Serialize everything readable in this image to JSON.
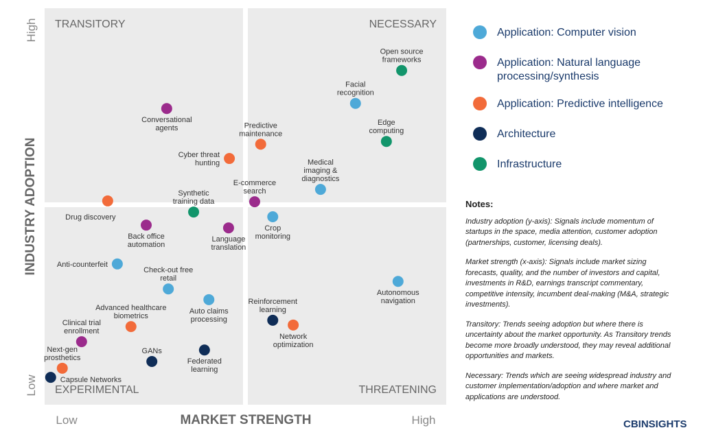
{
  "chart_data": {
    "type": "scatter",
    "x_label": "MARKET STRENGTH",
    "y_label": "INDUSTRY ADOPTION",
    "xlim": [
      0,
      100
    ],
    "ylim": [
      0,
      100
    ],
    "xticks": [
      {
        "value": 0,
        "label": "Low"
      },
      {
        "value": 100,
        "label": "High"
      }
    ],
    "yticks": [
      {
        "value": 0,
        "label": "Low"
      },
      {
        "value": 100,
        "label": "High"
      }
    ],
    "quadrants": {
      "top_left": "TRANSITORY",
      "top_right": "NECESSARY",
      "bottom_left": "EXPERIMENTAL",
      "bottom_right": "THREATENING"
    },
    "series": [
      {
        "name": "Application: Computer vision",
        "color": "#4ea9d8",
        "labels": [
          "Facial\nrecognition",
          "Medical\nimaging &\ndiagnostics",
          "Crop\nmonitoring",
          "Anti-counterfeit",
          "Check-out free\nretail",
          "Autonomous\nnavigation",
          "Auto claims\nprocessing"
        ],
        "x": [
          77.4,
          68.7,
          56.8,
          18.1,
          30.8,
          88.0,
          40.9
        ],
        "y": [
          76.0,
          54.3,
          47.4,
          35.5,
          29.2,
          31.1,
          26.5
        ]
      },
      {
        "name": "Application: Natural language\nprocessing/synthesis",
        "color": "#9b2b8c",
        "labels": [
          "Conversational\nagents",
          "E-commerce\nsearch",
          "Back office\nautomation",
          "Language\ntranslation",
          "Clinical trial\nenrollment"
        ],
        "x": [
          30.4,
          52.3,
          25.3,
          45.8,
          9.2
        ],
        "y": [
          74.7,
          51.2,
          45.3,
          44.6,
          15.9
        ]
      },
      {
        "name": "Application: Predictive intelligence",
        "color": "#f26b3a",
        "labels": [
          "Predictive\nmaintenance",
          "Cyber threat\nhunting",
          "Drug discovery",
          "Advanced healthcare\nbiometrics",
          "Network\noptimization",
          "Next-gen\nprosthetics"
        ],
        "x": [
          53.8,
          46.0,
          15.7,
          21.5,
          61.9,
          4.4
        ],
        "y": [
          65.7,
          62.1,
          51.4,
          19.7,
          20.1,
          9.2
        ]
      },
      {
        "name": "Architecture",
        "color": "#0f2d57",
        "labels": [
          "Reinforcement\nlearning",
          "GANs",
          "Federated\nlearning",
          "Capsule Networks"
        ],
        "x": [
          56.8,
          26.7,
          39.8,
          1.5
        ],
        "y": [
          21.3,
          10.9,
          13.8,
          6.9
        ]
      },
      {
        "name": "Infrastructure",
        "color": "#12956b",
        "labels": [
          "Open source\nframeworks",
          "Edge\ncomputing",
          "Synthetic\ntraining data"
        ],
        "x": [
          88.9,
          85.1,
          37.1
        ],
        "y": [
          84.3,
          66.4,
          48.6
        ]
      }
    ]
  },
  "notes": {
    "title": "Notes:",
    "paragraphs": [
      "Industry adoption (y-axis): Signals include momentum of startups in the space, media attention, customer adoption (partnerships, customer, licensing deals).",
      "Market strength (x-axis): Signals include market sizing forecasts, quality, and the number of investors and capital, investments in R&D, earnings transcript commentary, competitive intensity, incumbent deal-making (M&A, strategic investments).",
      "Transitory: Trends seeing adoption but where there is uncertainty about the market opportunity. As Transitory trends become more broadly understood, they may reveal additional opportunities and markets.",
      "Necessary: Trends which are seeing widespread industry and customer implementation/adoption and where market and applications are understood."
    ]
  },
  "logo": "CBINSIGHTS"
}
